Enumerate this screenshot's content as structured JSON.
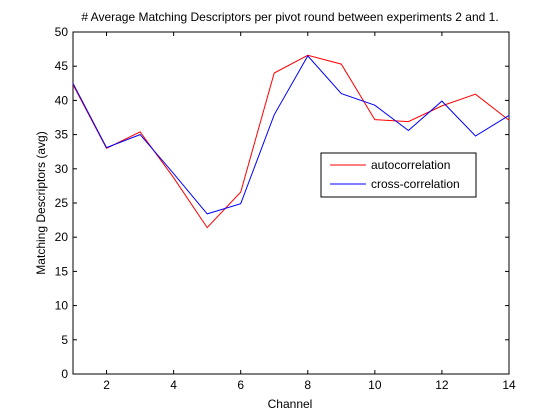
{
  "chart_data": {
    "type": "line",
    "title": "# Average Matching Descriptors per pivot round between experiments 2 and 1.",
    "xlabel": "Channel",
    "ylabel": "Matching Descriptors (avg)",
    "xlim": [
      1,
      14
    ],
    "ylim": [
      0,
      50
    ],
    "xticks": [
      2,
      4,
      6,
      8,
      10,
      12,
      14
    ],
    "yticks": [
      0,
      5,
      10,
      15,
      20,
      25,
      30,
      35,
      40,
      45,
      50
    ],
    "grid": false,
    "legend_position": "center-right",
    "x": [
      1,
      2,
      3,
      4,
      5,
      6,
      7,
      8,
      9,
      10,
      11,
      12,
      13,
      14
    ],
    "series": [
      {
        "name": "autocorrelation",
        "color": "#ff0000",
        "values": [
          42.3,
          33.0,
          35.4,
          28.7,
          21.4,
          26.6,
          44.0,
          46.6,
          45.3,
          37.2,
          36.9,
          39.2,
          40.9,
          37.1
        ]
      },
      {
        "name": "cross-correlation",
        "color": "#0000ff",
        "values": [
          42.5,
          33.1,
          35.0,
          29.3,
          23.4,
          24.9,
          37.9,
          46.5,
          41.0,
          39.3,
          35.6,
          39.9,
          34.8,
          37.8
        ]
      }
    ]
  }
}
